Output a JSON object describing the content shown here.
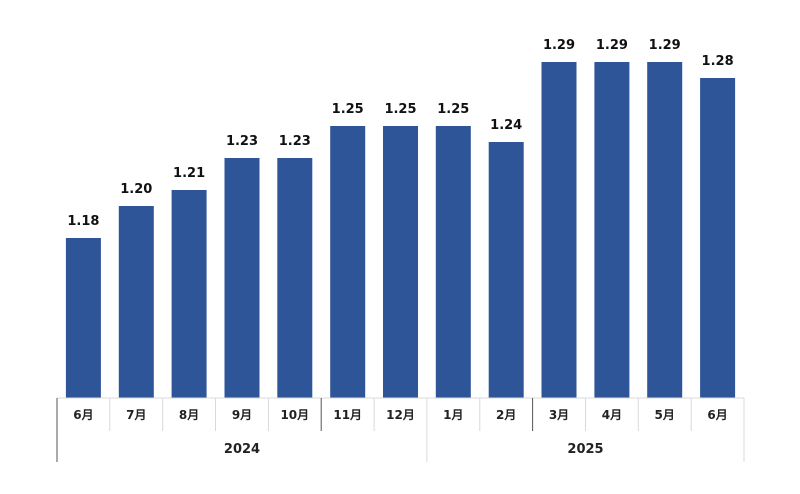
{
  "chart_data": {
    "type": "bar",
    "categories": [
      "6月",
      "7月",
      "8月",
      "9月",
      "10月",
      "11月",
      "12月",
      "1月",
      "2月",
      "3月",
      "4月",
      "5月",
      "6月"
    ],
    "values": [
      1.18,
      1.2,
      1.21,
      1.23,
      1.23,
      1.25,
      1.25,
      1.25,
      1.24,
      1.29,
      1.29,
      1.29,
      1.28
    ],
    "groups": [
      {
        "label": "2024",
        "count": 7
      },
      {
        "label": "2025",
        "count": 6
      }
    ],
    "ylim": [
      1.08,
      1.31
    ],
    "grid": false,
    "colors": {
      "bar": "#2e5597"
    }
  }
}
